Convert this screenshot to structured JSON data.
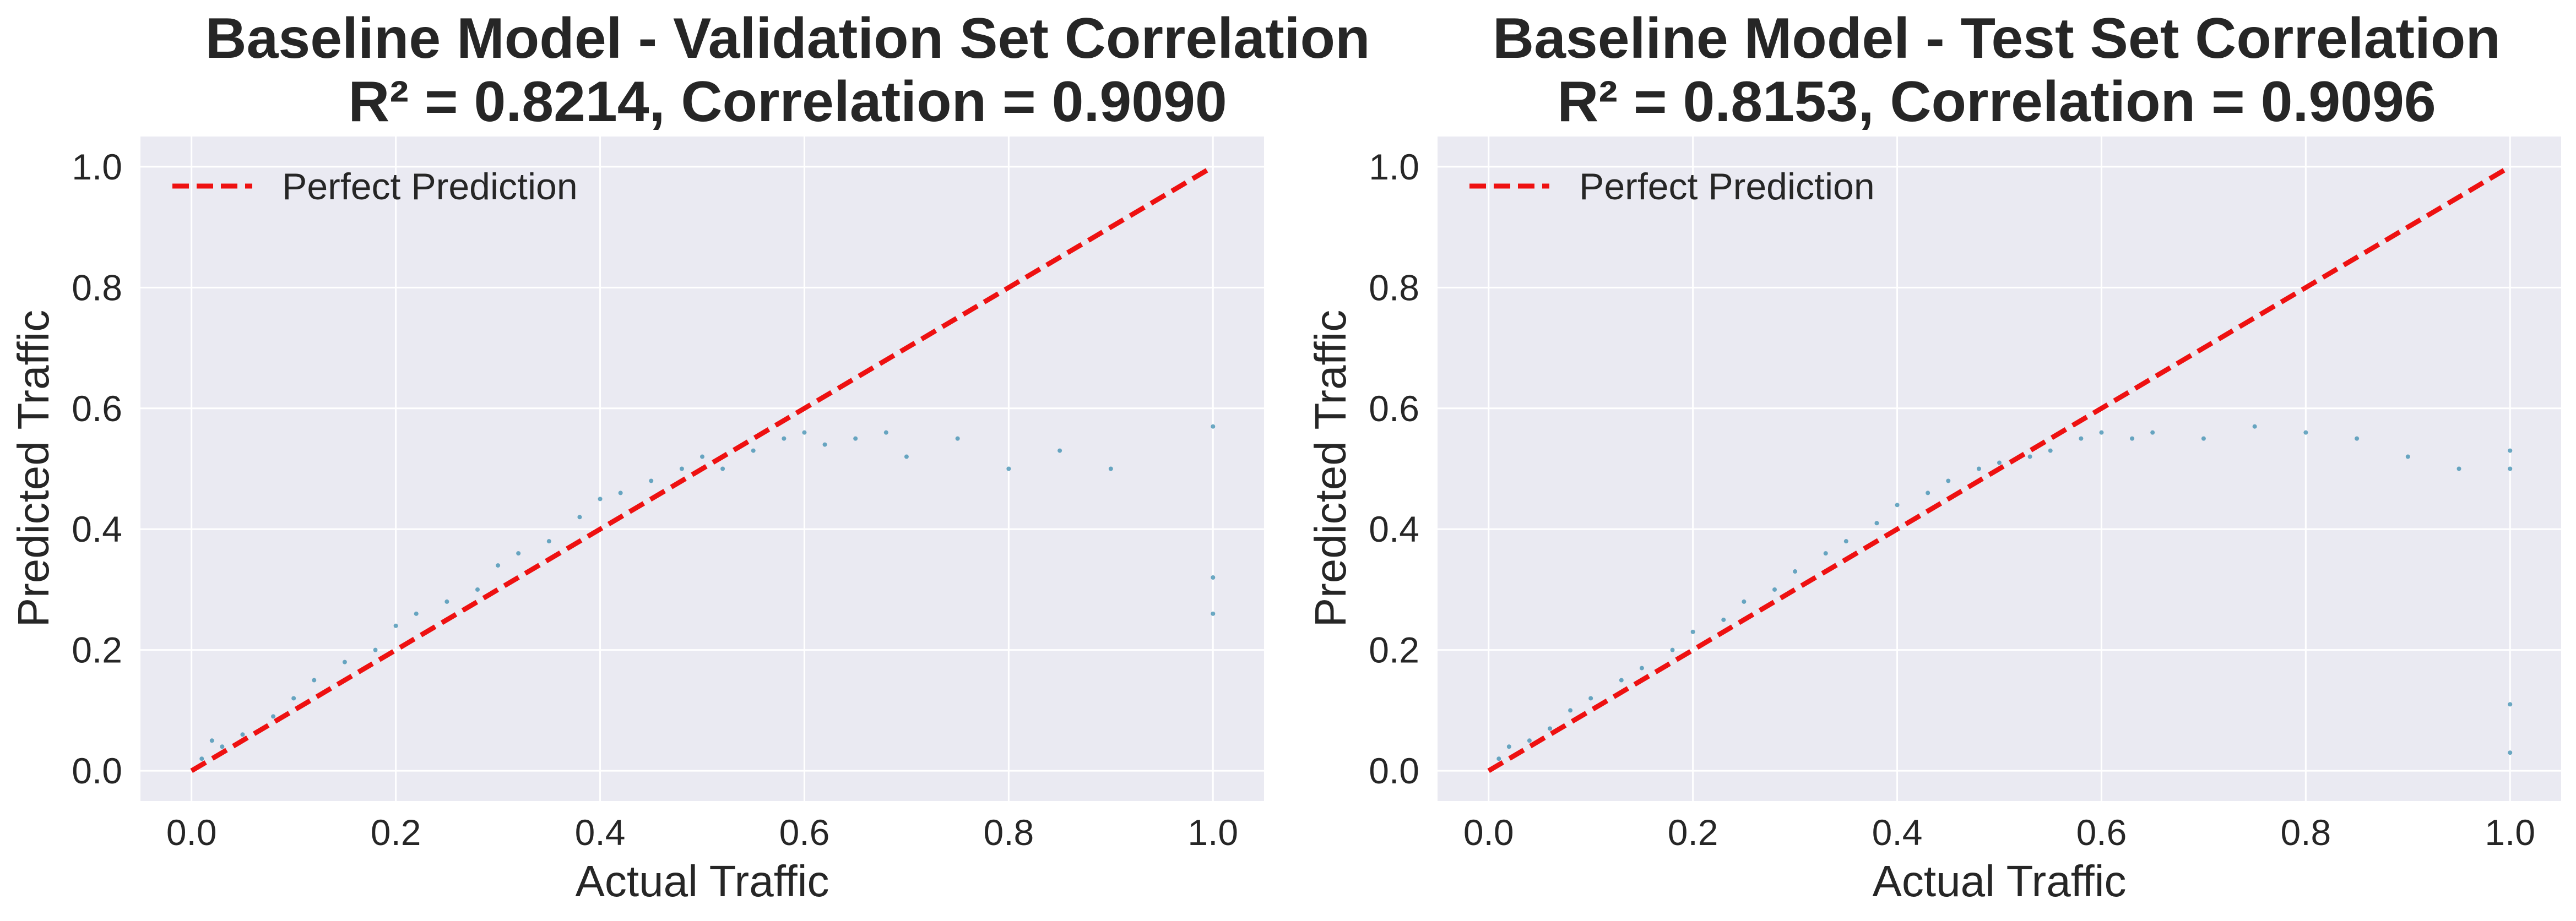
{
  "colors": {
    "plot_background": "#EAEAF2",
    "grid": "#FFFFFF",
    "points": "#2E86AB",
    "reference_line": "#EE1111",
    "text": "#262626"
  },
  "chart_data": [
    {
      "type": "scatter",
      "title_line1": "Baseline Model - Validation Set Correlation",
      "title_line2": "R² = 0.8214, Correlation = 0.9090",
      "xlabel": "Actual Traffic",
      "ylabel": "Predicted Traffic",
      "xlim": [
        -0.05,
        1.05
      ],
      "ylim": [
        -0.05,
        1.05
      ],
      "xticks": [
        "0.0",
        "0.2",
        "0.4",
        "0.6",
        "0.8",
        "1.0"
      ],
      "yticks": [
        "0.0",
        "0.2",
        "0.4",
        "0.6",
        "0.8",
        "1.0"
      ],
      "grid": true,
      "legend_position": "top-left",
      "legend": [
        "Perfect Prediction"
      ],
      "reference_line": {
        "x": [
          0,
          1
        ],
        "y": [
          0,
          1
        ],
        "style": "dashed"
      },
      "points": [
        [
          0.01,
          0.02
        ],
        [
          0.02,
          0.05
        ],
        [
          0.03,
          0.04
        ],
        [
          0.05,
          0.06
        ],
        [
          0.08,
          0.09
        ],
        [
          0.1,
          0.12
        ],
        [
          0.12,
          0.15
        ],
        [
          0.15,
          0.18
        ],
        [
          0.18,
          0.2
        ],
        [
          0.2,
          0.24
        ],
        [
          0.22,
          0.26
        ],
        [
          0.25,
          0.28
        ],
        [
          0.28,
          0.3
        ],
        [
          0.3,
          0.34
        ],
        [
          0.32,
          0.36
        ],
        [
          0.35,
          0.38
        ],
        [
          0.38,
          0.42
        ],
        [
          0.4,
          0.45
        ],
        [
          0.42,
          0.46
        ],
        [
          0.45,
          0.48
        ],
        [
          0.48,
          0.5
        ],
        [
          0.5,
          0.52
        ],
        [
          0.52,
          0.5
        ],
        [
          0.55,
          0.53
        ],
        [
          0.58,
          0.55
        ],
        [
          0.6,
          0.56
        ],
        [
          0.62,
          0.54
        ],
        [
          0.65,
          0.55
        ],
        [
          0.68,
          0.56
        ],
        [
          0.7,
          0.52
        ],
        [
          0.75,
          0.55
        ],
        [
          0.8,
          0.5
        ],
        [
          0.85,
          0.53
        ],
        [
          0.9,
          0.5
        ],
        [
          1.0,
          0.57
        ],
        [
          1.0,
          0.32
        ],
        [
          1.0,
          0.26
        ]
      ]
    },
    {
      "type": "scatter",
      "title_line1": "Baseline Model - Test Set Correlation",
      "title_line2": "R² = 0.8153, Correlation = 0.9096",
      "xlabel": "Actual Traffic",
      "ylabel": "Predicted Traffic",
      "xlim": [
        -0.05,
        1.05
      ],
      "ylim": [
        -0.05,
        1.05
      ],
      "xticks": [
        "0.0",
        "0.2",
        "0.4",
        "0.6",
        "0.8",
        "1.0"
      ],
      "yticks": [
        "0.0",
        "0.2",
        "0.4",
        "0.6",
        "0.8",
        "1.0"
      ],
      "grid": true,
      "legend_position": "top-left",
      "legend": [
        "Perfect Prediction"
      ],
      "reference_line": {
        "x": [
          0,
          1
        ],
        "y": [
          0,
          1
        ],
        "style": "dashed"
      },
      "points": [
        [
          0.01,
          0.02
        ],
        [
          0.02,
          0.04
        ],
        [
          0.04,
          0.05
        ],
        [
          0.06,
          0.07
        ],
        [
          0.08,
          0.1
        ],
        [
          0.1,
          0.12
        ],
        [
          0.13,
          0.15
        ],
        [
          0.15,
          0.17
        ],
        [
          0.18,
          0.2
        ],
        [
          0.2,
          0.23
        ],
        [
          0.23,
          0.25
        ],
        [
          0.25,
          0.28
        ],
        [
          0.28,
          0.3
        ],
        [
          0.3,
          0.33
        ],
        [
          0.33,
          0.36
        ],
        [
          0.35,
          0.38
        ],
        [
          0.38,
          0.41
        ],
        [
          0.4,
          0.44
        ],
        [
          0.43,
          0.46
        ],
        [
          0.45,
          0.48
        ],
        [
          0.48,
          0.5
        ],
        [
          0.5,
          0.51
        ],
        [
          0.53,
          0.52
        ],
        [
          0.55,
          0.53
        ],
        [
          0.58,
          0.55
        ],
        [
          0.6,
          0.56
        ],
        [
          0.63,
          0.55
        ],
        [
          0.65,
          0.56
        ],
        [
          0.7,
          0.55
        ],
        [
          0.75,
          0.57
        ],
        [
          0.8,
          0.56
        ],
        [
          0.85,
          0.55
        ],
        [
          0.9,
          0.52
        ],
        [
          0.95,
          0.5
        ],
        [
          1.0,
          0.53
        ],
        [
          1.0,
          0.5
        ],
        [
          1.0,
          0.11
        ],
        [
          1.0,
          0.03
        ]
      ]
    }
  ]
}
